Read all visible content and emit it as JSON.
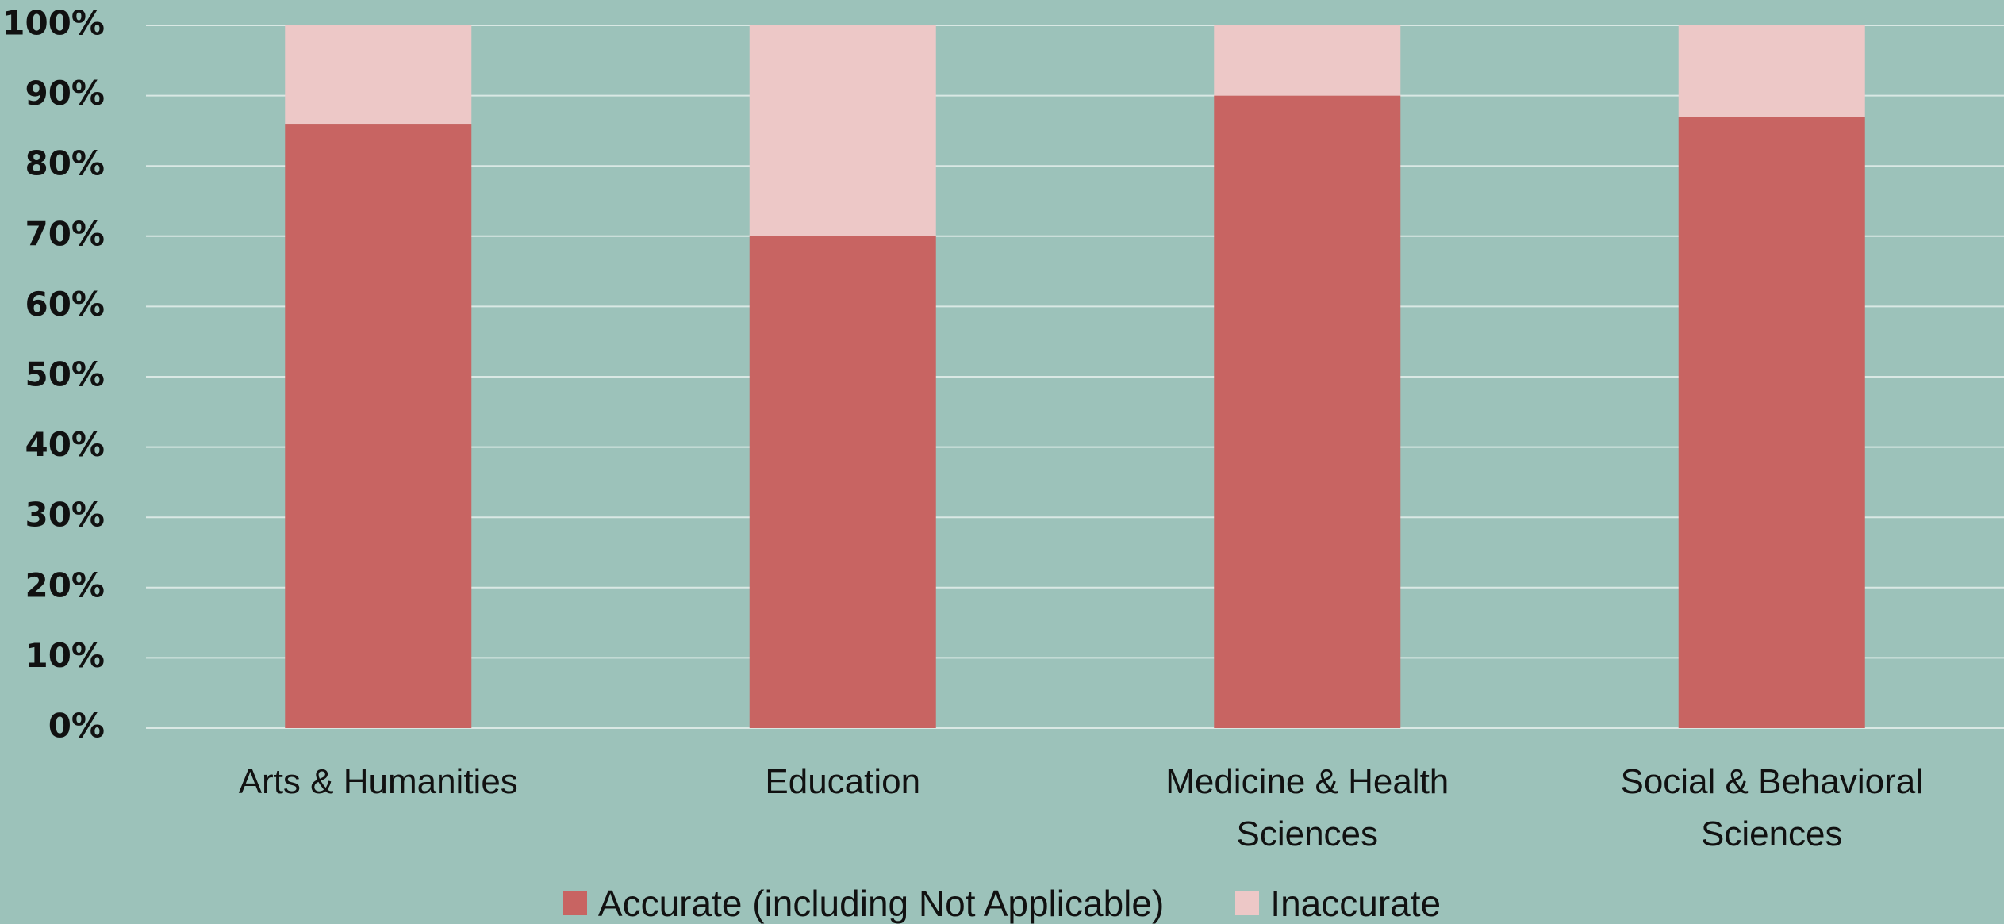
{
  "chart_data": {
    "type": "stacked_bar",
    "categories": [
      "Arts & Humanities",
      "Education",
      "Medicine & Health Sciences",
      "Social & Behavioral Sciences"
    ],
    "series": [
      {
        "name": "Accurate (including Not Applicable)",
        "color": "#c86462",
        "values": [
          86,
          70,
          90,
          87
        ]
      },
      {
        "name": "Inaccurate",
        "color": "#edc8c7",
        "values": [
          14,
          30,
          10,
          13
        ]
      }
    ],
    "ylim": [
      0,
      100
    ],
    "yticks": [
      {
        "value": 0,
        "label": "0%"
      },
      {
        "value": 10,
        "label": "10%"
      },
      {
        "value": 20,
        "label": "20%"
      },
      {
        "value": 30,
        "label": "30%"
      },
      {
        "value": 40,
        "label": "40%"
      },
      {
        "value": 50,
        "label": "50%"
      },
      {
        "value": 60,
        "label": "60%"
      },
      {
        "value": 70,
        "label": "70%"
      },
      {
        "value": 80,
        "label": "80%"
      },
      {
        "value": 90,
        "label": "90%"
      },
      {
        "value": 100,
        "label": "100%"
      }
    ],
    "grid": true,
    "legend": "bottom"
  }
}
